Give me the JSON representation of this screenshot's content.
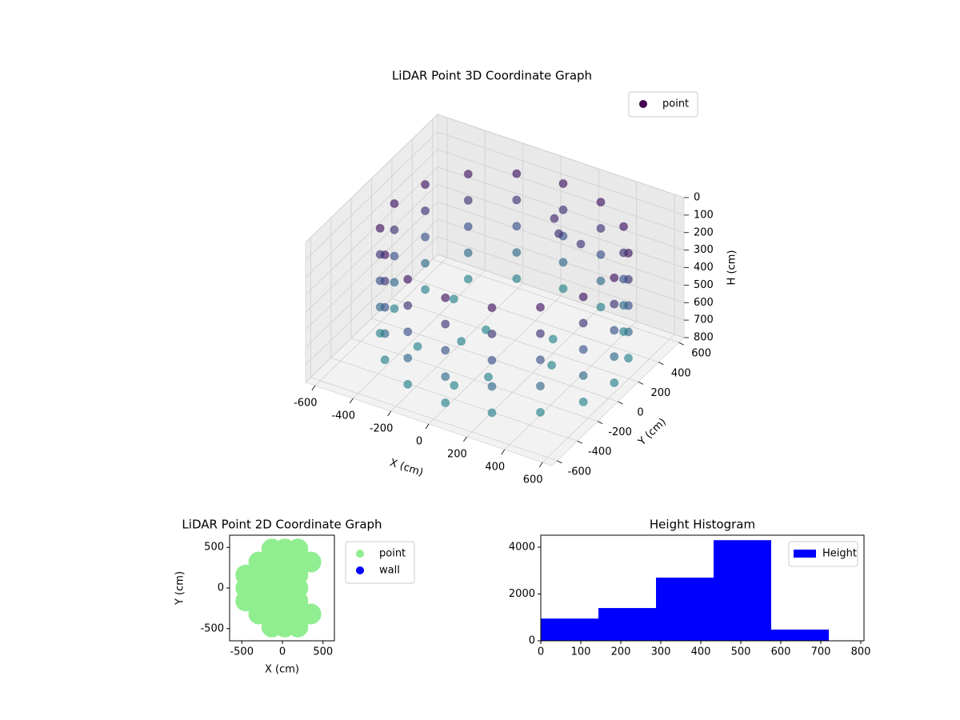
{
  "chart_data": [
    {
      "type": "scatter3d",
      "title": "LiDAR Point 3D Coordinate Graph",
      "xlabel": "X (cm)",
      "ylabel": "Y (cm)",
      "zlabel": "H (cm)",
      "xlim": [
        -650,
        650
      ],
      "ylim": [
        -650,
        650
      ],
      "zlim": [
        0,
        800
      ],
      "z_inverted": true,
      "xticks": [
        -600,
        -400,
        -200,
        0,
        200,
        400,
        600
      ],
      "yticks": [
        -600,
        -400,
        -200,
        0,
        200,
        400,
        600
      ],
      "zticks": [
        0,
        100,
        200,
        300,
        400,
        500,
        600,
        700,
        800
      ],
      "colormap": [
        "#440154",
        "#3b528b",
        "#21918c"
      ],
      "legend": "upper right",
      "grid": true,
      "series": [
        {
          "name": "point",
          "color": "#440154",
          "x": [
            630,
            586,
            460,
            272,
            50,
            -172,
            -360,
            -486,
            -530,
            -486,
            -360,
            -172,
            50,
            272,
            460,
            586,
            630,
            586,
            460,
            272,
            50,
            -172,
            -360,
            -486,
            -530,
            -486,
            -360,
            -172,
            50,
            272,
            460,
            586,
            630,
            586,
            460,
            272,
            50,
            -172,
            -360,
            -486,
            -530,
            -486,
            -360,
            -172,
            50,
            272,
            460,
            586,
            630,
            586,
            460,
            272,
            50,
            -172,
            -360,
            -486,
            -530,
            -486,
            -360,
            -172,
            50,
            272,
            460,
            586,
            630,
            586,
            460,
            272,
            50,
            -172,
            -360,
            -486,
            -530,
            -486,
            -360,
            -172,
            50,
            272,
            460,
            586,
            -300,
            -100,
            100,
            200,
            -350,
            0,
            300,
            -150,
            150,
            250,
            100
          ],
          "y": [
            0,
            222,
            410,
            536,
            580,
            536,
            410,
            222,
            0,
            -222,
            -410,
            -536,
            -580,
            -536,
            -410,
            -222,
            0,
            222,
            410,
            536,
            580,
            536,
            410,
            222,
            0,
            -222,
            -410,
            -536,
            -580,
            -536,
            -410,
            -222,
            0,
            222,
            410,
            536,
            580,
            536,
            410,
            222,
            0,
            -222,
            -410,
            -536,
            -580,
            -536,
            -410,
            -222,
            0,
            222,
            410,
            536,
            580,
            536,
            410,
            222,
            0,
            -222,
            -410,
            -536,
            -580,
            -536,
            -410,
            -222,
            0,
            222,
            410,
            536,
            580,
            536,
            410,
            222,
            0,
            -222,
            -410,
            -536,
            -580,
            -536,
            -410,
            -222,
            -200,
            100,
            -250,
            200,
            250,
            -400,
            0,
            -50,
            350,
            380,
            400
          ],
          "z": [
            100,
            100,
            100,
            100,
            100,
            100,
            100,
            100,
            100,
            100,
            100,
            100,
            100,
            100,
            100,
            100,
            250,
            250,
            250,
            250,
            250,
            250,
            250,
            250,
            250,
            250,
            250,
            250,
            250,
            250,
            250,
            250,
            400,
            400,
            400,
            400,
            400,
            400,
            400,
            400,
            400,
            400,
            400,
            400,
            400,
            400,
            400,
            400,
            550,
            550,
            550,
            550,
            550,
            550,
            550,
            550,
            550,
            550,
            550,
            550,
            550,
            550,
            550,
            550,
            700,
            700,
            700,
            700,
            700,
            700,
            700,
            700,
            700,
            700,
            700,
            700,
            700,
            700,
            700,
            700,
            720,
            720,
            720,
            720,
            720,
            720,
            720,
            720,
            220,
            260,
            180
          ]
        }
      ]
    },
    {
      "type": "scatter",
      "title": "LiDAR Point 2D Coordinate Graph",
      "xlabel": "X (cm)",
      "ylabel": "Y (cm)",
      "xlim": [
        -650,
        640
      ],
      "ylim": [
        -650,
        650
      ],
      "xticks": [
        -500,
        0,
        500
      ],
      "yticks": [
        -500,
        0,
        500
      ],
      "legend": "outside upper right",
      "series": [
        {
          "name": "point",
          "color": "#90ee90",
          "x": [
            -450,
            -450,
            -450,
            -290,
            -290,
            -290,
            -290,
            -290,
            -130,
            -130,
            -130,
            -130,
            -130,
            -130,
            -130,
            30,
            30,
            30,
            30,
            30,
            30,
            30,
            190,
            190,
            190,
            190,
            190,
            190,
            190,
            350,
            350
          ],
          "y": [
            -160,
            0,
            160,
            -320,
            -160,
            0,
            160,
            320,
            -480,
            -320,
            -160,
            0,
            160,
            320,
            480,
            -480,
            -320,
            -160,
            0,
            160,
            320,
            480,
            -480,
            -320,
            -160,
            0,
            160,
            320,
            480,
            -320,
            320
          ]
        },
        {
          "name": "wall",
          "color": "#0000ff",
          "x": [],
          "y": []
        }
      ]
    },
    {
      "type": "histogram",
      "title": "Height Histogram",
      "name": "Height",
      "color": "#0000ff",
      "bins": [
        0,
        144,
        288,
        432,
        576,
        720
      ],
      "counts": [
        950,
        1400,
        2700,
        4300,
        480
      ],
      "xlim": [
        0,
        808
      ],
      "ylim": [
        0,
        4513
      ],
      "xticks": [
        0,
        100,
        200,
        300,
        400,
        500,
        600,
        700,
        800
      ],
      "yticks": [
        0,
        2000,
        4000
      ],
      "legend": "upper right"
    }
  ]
}
